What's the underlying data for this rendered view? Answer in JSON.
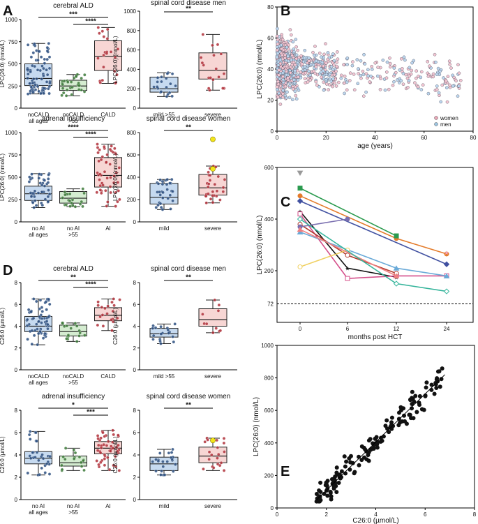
{
  "panels": {
    "A": "A",
    "B": "B",
    "C": "C",
    "D": "D",
    "E": "E"
  },
  "boxplots": [
    {
      "id": "a1",
      "title": "cerebral ALD",
      "ylabel": "LPC(26:0) (nmol/L)",
      "ylim": [
        0,
        1000
      ],
      "ticks": [
        0,
        250,
        500,
        750,
        1000
      ],
      "groups": [
        {
          "label1": "noCALD",
          "label2": "all ages",
          "color": "blue",
          "q1": 255,
          "median": 335,
          "q3": 500,
          "whisker_low": 160,
          "whisker_high": 730,
          "n": 80
        },
        {
          "label1": "noCALD",
          "label2": ">55",
          "color": "green",
          "q1": 200,
          "median": 250,
          "q3": 315,
          "whisker_low": 140,
          "whisker_high": 380,
          "n": 28
        },
        {
          "label1": "CALD",
          "label2": "",
          "color": "red",
          "q1": 425,
          "median": 585,
          "q3": 760,
          "whisker_low": 280,
          "whisker_high": 910,
          "n": 22
        }
      ],
      "sig": [
        {
          "from": 0,
          "to": 2,
          "text": "***"
        },
        {
          "from": 1,
          "to": 2,
          "text": "****"
        }
      ]
    },
    {
      "id": "a2",
      "title": "spinal cord disease men",
      "ylabel": "LPC(26:0) (nmol/L)",
      "ylim": [
        0,
        1000
      ],
      "ticks": [
        0,
        200,
        400,
        600,
        800,
        1000
      ],
      "groups": [
        {
          "label1": "mild >55",
          "label2": "",
          "color": "blue",
          "q1": 165,
          "median": 200,
          "q3": 320,
          "whisker_low": 120,
          "whisker_high": 365,
          "n": 20
        },
        {
          "label1": "severe",
          "label2": "",
          "color": "red",
          "q1": 300,
          "median": 390,
          "q3": 570,
          "whisker_low": 185,
          "whisker_high": 760,
          "n": 18
        }
      ],
      "sig": [
        {
          "from": 0,
          "to": 1,
          "text": "**"
        }
      ]
    },
    {
      "id": "a3",
      "title": "adrenal insufficiency",
      "ylabel": "LPC(26:0) (nmol/L)",
      "ylim": [
        0,
        1000
      ],
      "ticks": [
        0,
        250,
        500,
        750,
        1000
      ],
      "groups": [
        {
          "label1": "no AI",
          "label2": "all ages",
          "color": "blue",
          "q1": 240,
          "median": 315,
          "q3": 400,
          "whisker_low": 160,
          "whisker_high": 540,
          "n": 45
        },
        {
          "label1": "no AI",
          "label2": ">55",
          "color": "green",
          "q1": 210,
          "median": 265,
          "q3": 340,
          "whisker_low": 170,
          "whisker_high": 370,
          "n": 20
        },
        {
          "label1": "AI",
          "label2": "",
          "color": "red",
          "q1": 390,
          "median": 520,
          "q3": 720,
          "whisker_low": 175,
          "whisker_high": 870,
          "n": 50
        }
      ],
      "sig": [
        {
          "from": 0,
          "to": 2,
          "text": "****"
        },
        {
          "from": 1,
          "to": 2,
          "text": "****"
        }
      ]
    },
    {
      "id": "a4",
      "title": "spinal cord disease women",
      "ylabel": "LPC(26:0) (nmol/L)",
      "ylim": [
        0,
        800
      ],
      "ticks": [
        0,
        200,
        400,
        600,
        800
      ],
      "groups": [
        {
          "label1": "mild",
          "label2": "",
          "color": "blue",
          "q1": 160,
          "median": 220,
          "q3": 345,
          "whisker_low": 110,
          "whisker_high": 380,
          "n": 30
        },
        {
          "label1": "severe",
          "label2": "",
          "color": "red",
          "q1": 240,
          "median": 305,
          "q3": 425,
          "whisker_low": 170,
          "whisker_high": 500,
          "n": 28,
          "highlight": [
            740,
            475
          ]
        }
      ],
      "sig": [
        {
          "from": 0,
          "to": 1,
          "text": "**"
        }
      ]
    },
    {
      "id": "d1",
      "title": "cerebral ALD",
      "ylabel": "C26:0 (µmol/L)",
      "ylim": [
        0,
        8
      ],
      "ticks": [
        0,
        2,
        4,
        6,
        8
      ],
      "groups": [
        {
          "label1": "noCALD",
          "label2": "all ages",
          "color": "blue",
          "q1": 3.5,
          "median": 4.0,
          "q3": 4.9,
          "whisker_low": 2.3,
          "whisker_high": 6.5,
          "n": 60
        },
        {
          "label1": "noCALD",
          "label2": ">55",
          "color": "green",
          "q1": 3.1,
          "median": 3.5,
          "q3": 4.1,
          "whisker_low": 2.6,
          "whisker_high": 4.3,
          "n": 18
        },
        {
          "label1": "CALD",
          "label2": "",
          "color": "red",
          "q1": 4.5,
          "median": 5.0,
          "q3": 5.7,
          "whisker_low": 3.6,
          "whisker_high": 6.5,
          "n": 20
        }
      ],
      "sig": [
        {
          "from": 0,
          "to": 2,
          "text": "**"
        },
        {
          "from": 1,
          "to": 2,
          "text": "****"
        }
      ]
    },
    {
      "id": "d2",
      "title": "spinal cord disease men",
      "ylabel": "C26:0 (µmol/L)",
      "ylim": [
        0,
        8
      ],
      "ticks": [
        0,
        2,
        4,
        6,
        8
      ],
      "groups": [
        {
          "label1": "mild >55",
          "label2": "",
          "color": "blue",
          "q1": 3.0,
          "median": 3.3,
          "q3": 3.8,
          "whisker_low": 2.4,
          "whisker_high": 4.2,
          "n": 18
        },
        {
          "label1": "severe",
          "label2": "",
          "color": "red",
          "q1": 4.0,
          "median": 4.6,
          "q3": 5.6,
          "whisker_low": 3.4,
          "whisker_high": 6.4,
          "n": 10
        }
      ],
      "sig": [
        {
          "from": 0,
          "to": 1,
          "text": "**"
        }
      ]
    },
    {
      "id": "d3",
      "title": "adrenal insufficiency",
      "ylabel": "C26:0 (µmol/L)",
      "ylim": [
        0,
        8
      ],
      "ticks": [
        0,
        2,
        4,
        6,
        8
      ],
      "groups": [
        {
          "label1": "no AI",
          "label2": "all ages",
          "color": "blue",
          "q1": 3.2,
          "median": 3.7,
          "q3": 4.3,
          "whisker_low": 2.2,
          "whisker_high": 6.1,
          "n": 30
        },
        {
          "label1": "no AI",
          "label2": ">55",
          "color": "green",
          "q1": 3.0,
          "median": 3.3,
          "q3": 3.9,
          "whisker_low": 2.6,
          "whisker_high": 4.6,
          "n": 16
        },
        {
          "label1": "AI",
          "label2": "",
          "color": "red",
          "q1": 4.1,
          "median": 4.6,
          "q3": 5.2,
          "whisker_low": 2.6,
          "whisker_high": 6.2,
          "n": 50
        }
      ],
      "sig": [
        {
          "from": 0,
          "to": 2,
          "text": "*"
        },
        {
          "from": 1,
          "to": 2,
          "text": "***"
        }
      ]
    },
    {
      "id": "d4",
      "title": "spinal cord disease women",
      "ylabel": "C26:0 (µmol/L)",
      "ylim": [
        0,
        8
      ],
      "ticks": [
        0,
        2,
        4,
        6,
        8
      ],
      "groups": [
        {
          "label1": "mild",
          "label2": "",
          "color": "blue",
          "q1": 2.6,
          "median": 3.2,
          "q3": 3.8,
          "whisker_low": 2.2,
          "whisker_high": 4.5,
          "n": 22
        },
        {
          "label1": "severe",
          "label2": "",
          "color": "red",
          "q1": 3.3,
          "median": 3.9,
          "q3": 4.7,
          "whisker_low": 2.6,
          "whisker_high": 5.5,
          "n": 20,
          "highlight": [
            5.3
          ]
        }
      ],
      "sig": [
        {
          "from": 0,
          "to": 1,
          "text": "**"
        }
      ]
    }
  ],
  "chart_data": [
    {
      "type": "scatter",
      "panel": "B",
      "xlabel": "age (years)",
      "ylabel": "LPC(26:0) (nmol/L)",
      "xlim": [
        0,
        80
      ],
      "ylim": [
        0,
        80
      ],
      "xticks": [
        0,
        20,
        40,
        60,
        80
      ],
      "yticks": [
        0,
        20,
        40,
        60,
        80
      ],
      "legend": [
        {
          "name": "women",
          "color": "#e8a7b7"
        },
        {
          "name": "men",
          "color": "#9cc4e0"
        }
      ]
    },
    {
      "type": "line",
      "panel": "C",
      "xlabel": "months post HCT",
      "ylabel": "LPC(26:0) (nmol/L)",
      "x": [
        0,
        6,
        12,
        24
      ],
      "ylim": [
        0,
        600
      ],
      "yticks": [
        200,
        400,
        600
      ],
      "reference_line": {
        "value": 72,
        "label": "72"
      },
      "series": [
        {
          "color": "#e47b2a",
          "marker": "circle",
          "values": [
            490,
            null,
            325,
            265
          ]
        },
        {
          "color": "#2a9a4e",
          "marker": "square",
          "values": [
            520,
            null,
            335,
            null
          ]
        },
        {
          "color": "#999999",
          "marker": "triangle-down",
          "values": [
            578,
            null,
            null,
            null
          ]
        },
        {
          "color": "#4050a0",
          "marker": "diamond",
          "values": [
            470,
            null,
            null,
            225
          ]
        },
        {
          "color": "#111111",
          "marker": "star",
          "values": [
            430,
            210,
            175,
            null
          ]
        },
        {
          "color": "#d44f8a",
          "marker": "square-open",
          "values": [
            420,
            170,
            180,
            180
          ]
        },
        {
          "color": "#b03a2e",
          "marker": "circle-open",
          "values": [
            380,
            260,
            190,
            null
          ]
        },
        {
          "color": "#7a6fb0",
          "marker": "circle",
          "values": [
            370,
            400,
            null,
            null
          ]
        },
        {
          "color": "#6aaad8",
          "marker": "triangle",
          "values": [
            350,
            null,
            210,
            180
          ]
        },
        {
          "color": "#f0d060",
          "marker": "circle-open",
          "values": [
            215,
            280,
            null,
            null
          ]
        },
        {
          "color": "#f08080",
          "marker": "triangle",
          "values": [
            360,
            null,
            180,
            null
          ]
        },
        {
          "color": "#f4a5c8",
          "marker": "star",
          "values": [
            null,
            null,
            null,
            270
          ]
        },
        {
          "color": "#37b59c",
          "marker": "diamond-open",
          "values": [
            400,
            null,
            150,
            120
          ]
        }
      ]
    },
    {
      "type": "scatter",
      "panel": "E",
      "xlabel": "C26:0 (µmol/L)",
      "ylabel": "LPC(26:0) (nmol/L)",
      "xlim": [
        0,
        8
      ],
      "ylim": [
        0,
        1000
      ],
      "xticks": [
        0,
        2,
        4,
        6,
        8
      ],
      "yticks": [
        0,
        200,
        400,
        600,
        800,
        1000
      ],
      "trendline": {
        "from": [
          1.6,
          50
        ],
        "to": [
          6.8,
          820
        ]
      }
    }
  ]
}
